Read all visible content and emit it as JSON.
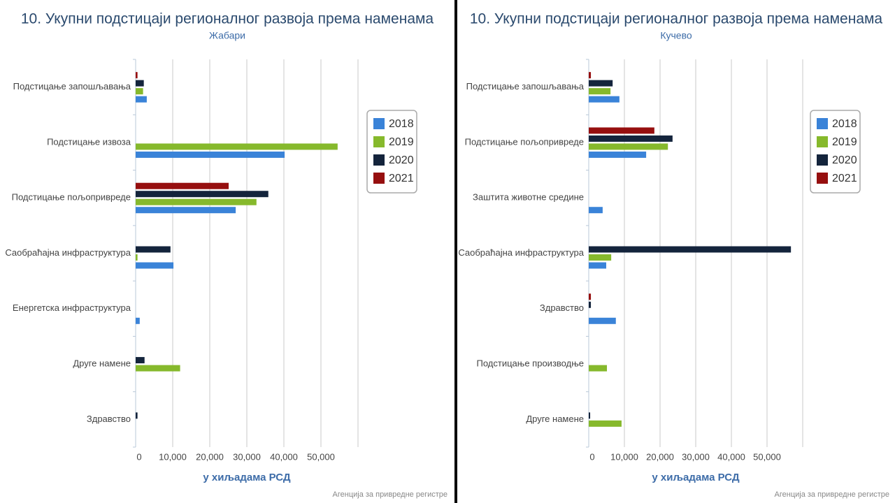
{
  "chart_data": [
    {
      "type": "bar",
      "orientation": "horizontal",
      "title": "10. Укупни подстицаји регионалног развоја према наменама",
      "subtitle": "Жабари",
      "x_axis_title": "у хиљадама РСД",
      "source": "Агенција за привредне регистре",
      "categories": [
        "Подстицање запошљавања",
        "Подстицање извоза",
        "Подстицање пољопривреде",
        "Саобраћајна инфраструктура",
        "Енергетска инфраструктура",
        "Друге намене",
        "Здравство"
      ],
      "series": [
        {
          "name": "2018",
          "color": "#3a83d8",
          "values": [
            3000,
            40200,
            27000,
            10200,
            1100,
            0,
            0
          ]
        },
        {
          "name": "2019",
          "color": "#86b92c",
          "values": [
            2000,
            54500,
            32600,
            500,
            0,
            12000,
            0
          ]
        },
        {
          "name": "2020",
          "color": "#14243c",
          "values": [
            2200,
            0,
            35800,
            9400,
            0,
            2400,
            500
          ]
        },
        {
          "name": "2021",
          "color": "#960f0f",
          "values": [
            500,
            0,
            25100,
            0,
            0,
            0,
            0
          ]
        }
      ],
      "xlim": [
        0,
        60000
      ],
      "xticks": [
        0,
        {
          "value": 10000,
          "label": "10,000"
        },
        {
          "value": 20000,
          "label": "20,000"
        },
        {
          "value": 30000,
          "label": "30,000"
        },
        {
          "value": 40000,
          "label": "40,000"
        },
        {
          "value": 50000,
          "label": "50,000"
        }
      ],
      "grid": true,
      "legend": "right"
    },
    {
      "type": "bar",
      "orientation": "horizontal",
      "title": "10. Укупни подстицаји регионалног развоја према наменама",
      "subtitle": "Кучево",
      "x_axis_title": "у хиљадама РСД",
      "source": "Агенција за привредне регистре",
      "categories": [
        "Подстицање запошљавања",
        "Подстицање пољопривреде",
        "Заштита животне средине",
        "Саобраћајна инфраструктура",
        "Здравство",
        "Подстицање производње",
        "Друге намене"
      ],
      "series": [
        {
          "name": "2018",
          "color": "#3a83d8",
          "values": [
            8600,
            16100,
            3900,
            4900,
            7600,
            0,
            0
          ]
        },
        {
          "name": "2019",
          "color": "#86b92c",
          "values": [
            6100,
            22200,
            0,
            6300,
            0,
            5100,
            9200
          ]
        },
        {
          "name": "2020",
          "color": "#14243c",
          "values": [
            6700,
            23500,
            0,
            56700,
            600,
            0,
            400
          ]
        },
        {
          "name": "2021",
          "color": "#960f0f",
          "values": [
            600,
            18400,
            0,
            0,
            600,
            0,
            0
          ]
        }
      ],
      "xlim": [
        0,
        60000
      ],
      "xticks": [
        0,
        {
          "value": 10000,
          "label": "10,000"
        },
        {
          "value": 20000,
          "label": "20,000"
        },
        {
          "value": 30000,
          "label": "30,000"
        },
        {
          "value": 40000,
          "label": "40,000"
        },
        {
          "value": 50000,
          "label": "50,000"
        }
      ],
      "grid": true,
      "legend": "right"
    }
  ]
}
